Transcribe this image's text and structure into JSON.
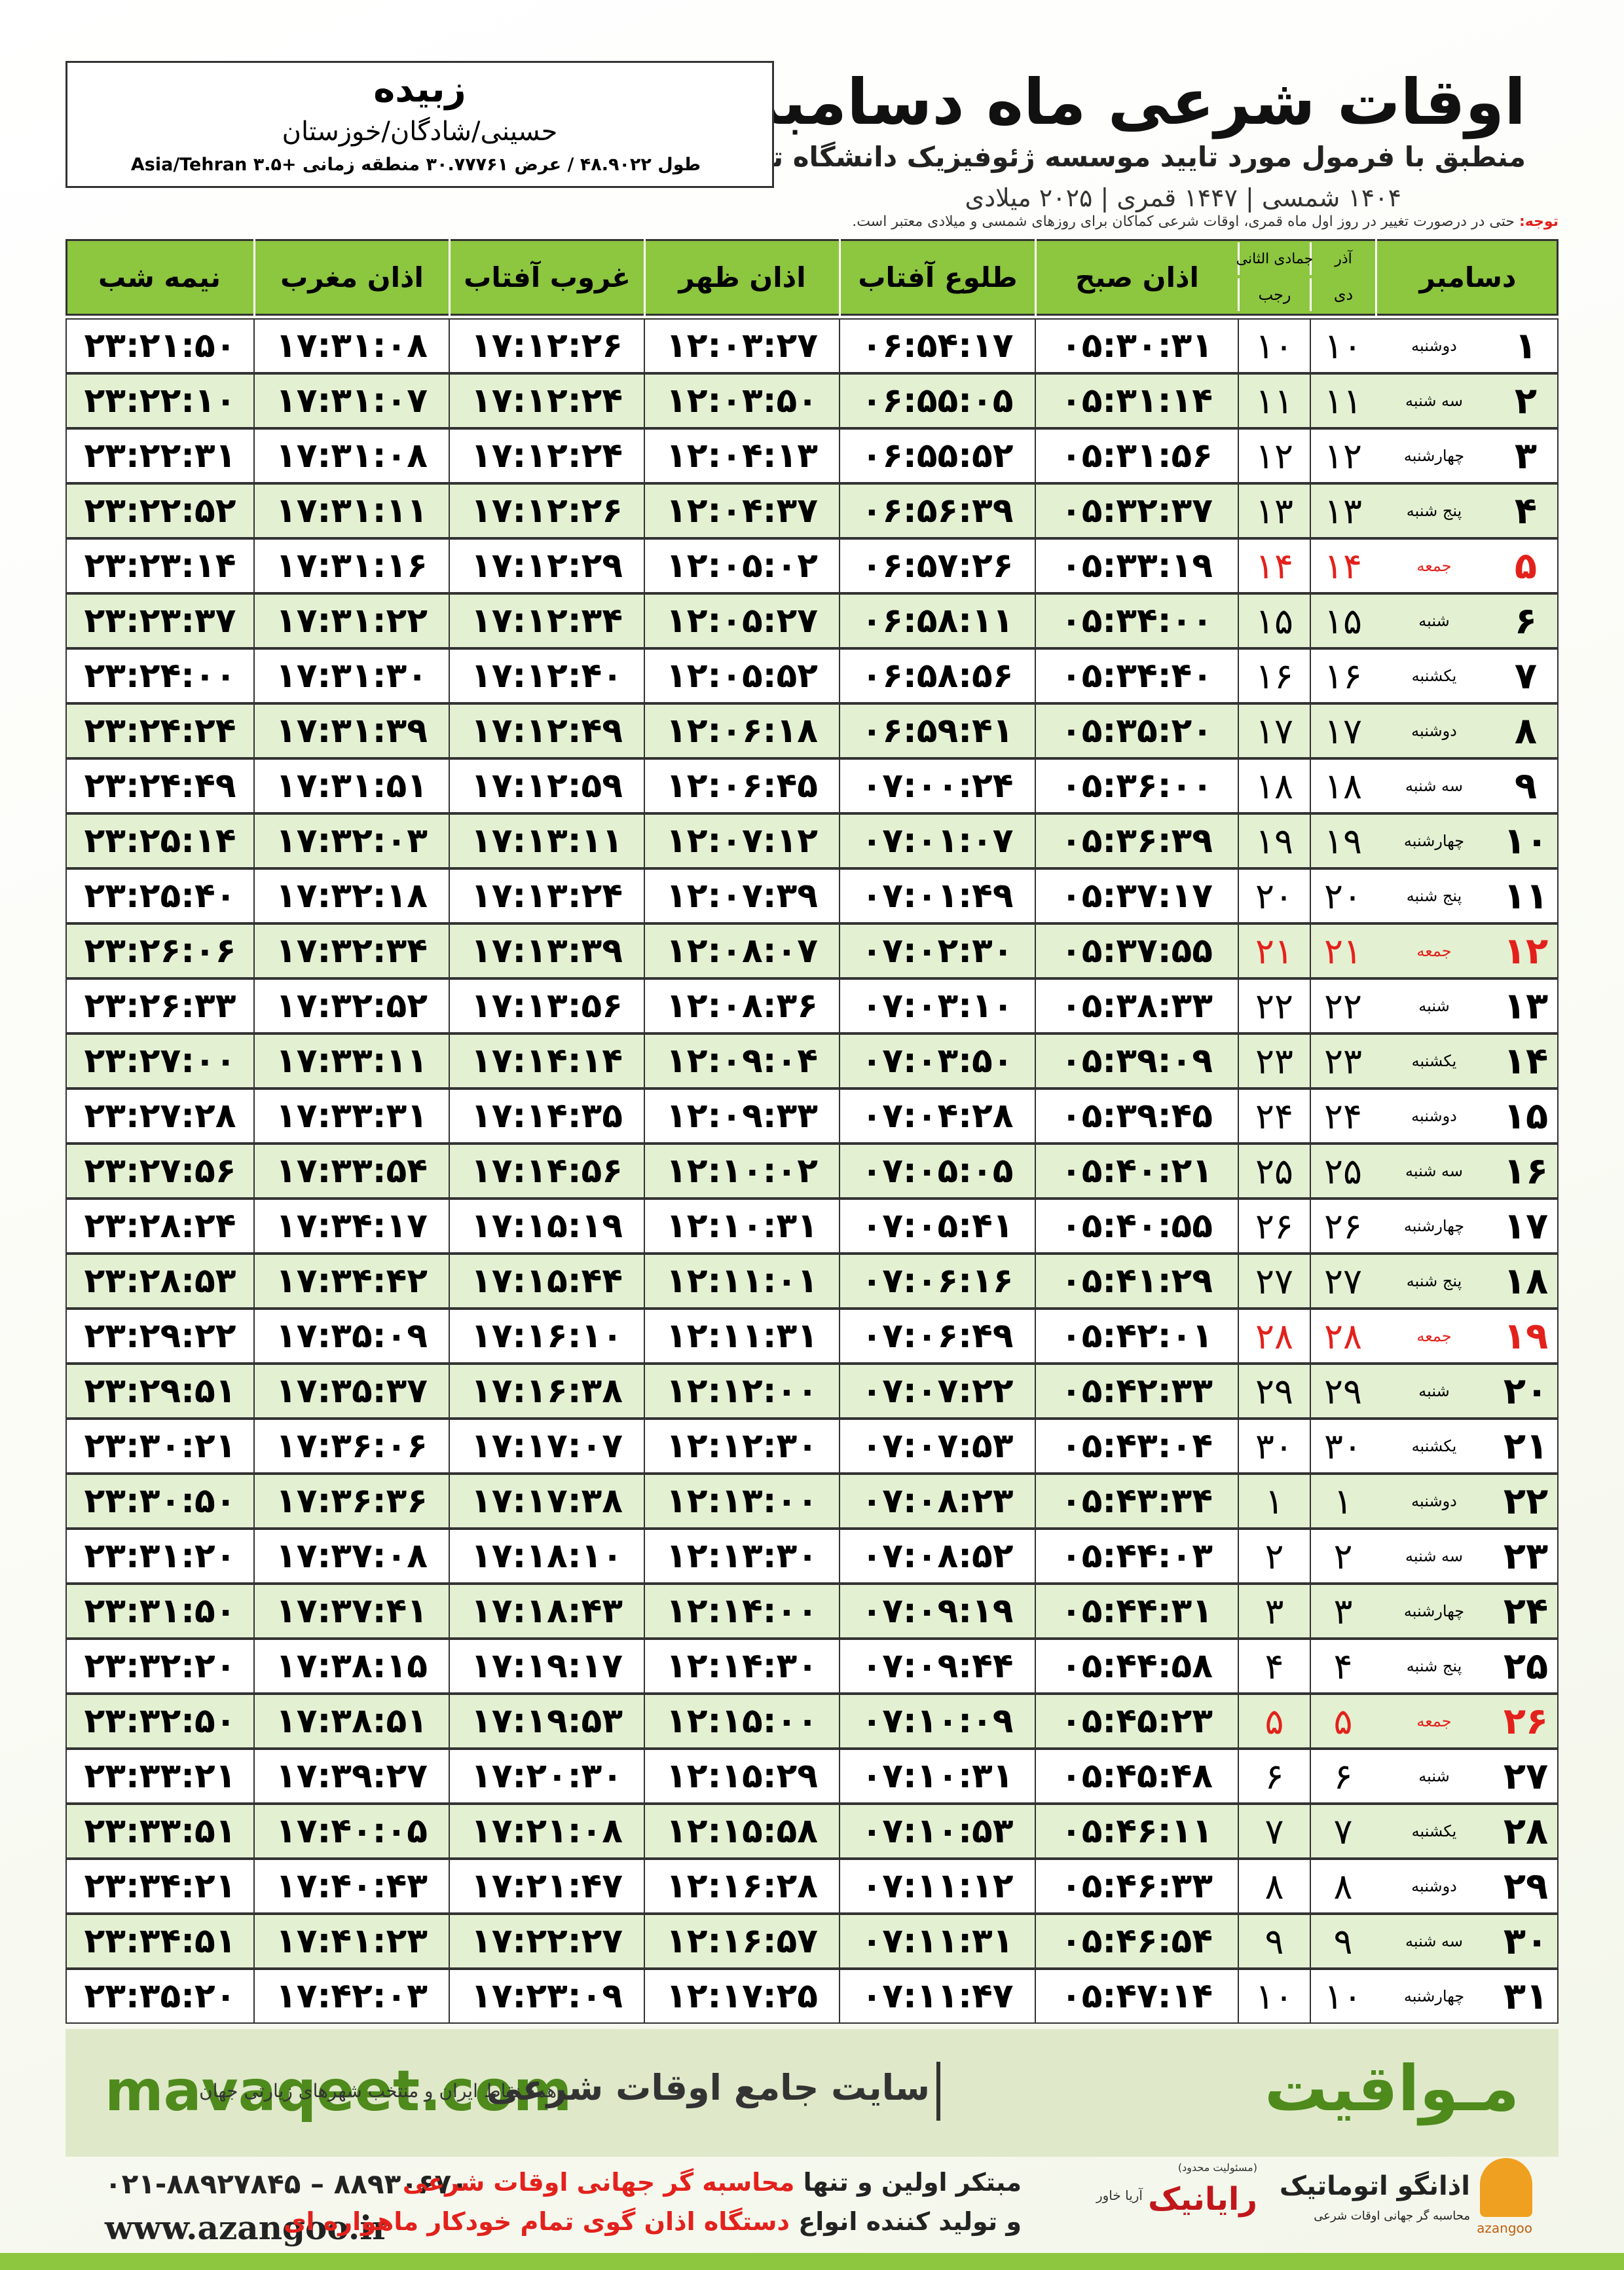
{
  "header": {
    "title": "اوقات شرعی ماه دسامبر",
    "subtitle": "منطبق با فرمول مورد تایید موسسه ژئوفیزیک دانشگاه تهران",
    "dates": "۱۴۰۴ شمسی | ۱۴۴۷ قمری | ۲۰۲۵ میلادی"
  },
  "location": {
    "name": "زبیده",
    "region": "حسینی/شادگان/خوزستان",
    "coords": "طول ۴۸.۹۰۲۲ / عرض ۳۰.۷۷۷۶۱ منطقه زمانی +۳.۵ Asia/Tehran"
  },
  "note": {
    "label": "توجه:",
    "text": "حتی در درصورت تغییر در روز اول ماه قمری، اوقات شرعی کماکان برای روزهای شمسی و میلادی معتبر است."
  },
  "table": {
    "red_rows": [
      4,
      11,
      18,
      25
    ],
    "red_color": "#e3211c",
    "headers": [
      {
        "text": "دسامبر"
      },
      {
        "top": "آذر",
        "bottom": "دی"
      },
      {
        "top": "جمادی الثانی",
        "bottom": "رجب"
      },
      {
        "text": "اذان صبح"
      },
      {
        "text": "طلوع آفتاب"
      },
      {
        "text": "اذان ظهر"
      },
      {
        "text": "غروب آفتاب"
      },
      {
        "text": "اذان مغرب"
      },
      {
        "text": "نیمه شب"
      }
    ],
    "rows": [
      [
        "۱",
        "دوشنبه",
        "۱۰",
        "۱۰",
        "۰۵:۳۰:۳۱",
        "۰۶:۵۴:۱۷",
        "۱۲:۰۳:۲۷",
        "۱۷:۱۲:۲۶",
        "۱۷:۳۱:۰۸",
        "۲۳:۲۱:۵۰"
      ],
      [
        "۲",
        "سه شنبه",
        "۱۱",
        "۱۱",
        "۰۵:۳۱:۱۴",
        "۰۶:۵۵:۰۵",
        "۱۲:۰۳:۵۰",
        "۱۷:۱۲:۲۴",
        "۱۷:۳۱:۰۷",
        "۲۳:۲۲:۱۰"
      ],
      [
        "۳",
        "چهارشنبه",
        "۱۲",
        "۱۲",
        "۰۵:۳۱:۵۶",
        "۰۶:۵۵:۵۲",
        "۱۲:۰۴:۱۳",
        "۱۷:۱۲:۲۴",
        "۱۷:۳۱:۰۸",
        "۲۳:۲۲:۳۱"
      ],
      [
        "۴",
        "پنج شنبه",
        "۱۳",
        "۱۳",
        "۰۵:۳۲:۳۷",
        "۰۶:۵۶:۳۹",
        "۱۲:۰۴:۳۷",
        "۱۷:۱۲:۲۶",
        "۱۷:۳۱:۱۱",
        "۲۳:۲۲:۵۲"
      ],
      [
        "۵",
        "جمعه",
        "۱۴",
        "۱۴",
        "۰۵:۳۳:۱۹",
        "۰۶:۵۷:۲۶",
        "۱۲:۰۵:۰۲",
        "۱۷:۱۲:۲۹",
        "۱۷:۳۱:۱۶",
        "۲۳:۲۳:۱۴"
      ],
      [
        "۶",
        "شنبه",
        "۱۵",
        "۱۵",
        "۰۵:۳۴:۰۰",
        "۰۶:۵۸:۱۱",
        "۱۲:۰۵:۲۷",
        "۱۷:۱۲:۳۴",
        "۱۷:۳۱:۲۲",
        "۲۳:۲۳:۳۷"
      ],
      [
        "۷",
        "یکشنبه",
        "۱۶",
        "۱۶",
        "۰۵:۳۴:۴۰",
        "۰۶:۵۸:۵۶",
        "۱۲:۰۵:۵۲",
        "۱۷:۱۲:۴۰",
        "۱۷:۳۱:۳۰",
        "۲۳:۲۴:۰۰"
      ],
      [
        "۸",
        "دوشنبه",
        "۱۷",
        "۱۷",
        "۰۵:۳۵:۲۰",
        "۰۶:۵۹:۴۱",
        "۱۲:۰۶:۱۸",
        "۱۷:۱۲:۴۹",
        "۱۷:۳۱:۳۹",
        "۲۳:۲۴:۲۴"
      ],
      [
        "۹",
        "سه شنبه",
        "۱۸",
        "۱۸",
        "۰۵:۳۶:۰۰",
        "۰۷:۰۰:۲۴",
        "۱۲:۰۶:۴۵",
        "۱۷:۱۲:۵۹",
        "۱۷:۳۱:۵۱",
        "۲۳:۲۴:۴۹"
      ],
      [
        "۱۰",
        "چهارشنبه",
        "۱۹",
        "۱۹",
        "۰۵:۳۶:۳۹",
        "۰۷:۰۱:۰۷",
        "۱۲:۰۷:۱۲",
        "۱۷:۱۳:۱۱",
        "۱۷:۳۲:۰۳",
        "۲۳:۲۵:۱۴"
      ],
      [
        "۱۱",
        "پنج شنبه",
        "۲۰",
        "۲۰",
        "۰۵:۳۷:۱۷",
        "۰۷:۰۱:۴۹",
        "۱۲:۰۷:۳۹",
        "۱۷:۱۳:۲۴",
        "۱۷:۳۲:۱۸",
        "۲۳:۲۵:۴۰"
      ],
      [
        "۱۲",
        "جمعه",
        "۲۱",
        "۲۱",
        "۰۵:۳۷:۵۵",
        "۰۷:۰۲:۳۰",
        "۱۲:۰۸:۰۷",
        "۱۷:۱۳:۳۹",
        "۱۷:۳۲:۳۴",
        "۲۳:۲۶:۰۶"
      ],
      [
        "۱۳",
        "شنبه",
        "۲۲",
        "۲۲",
        "۰۵:۳۸:۳۳",
        "۰۷:۰۳:۱۰",
        "۱۲:۰۸:۳۶",
        "۱۷:۱۳:۵۶",
        "۱۷:۳۲:۵۲",
        "۲۳:۲۶:۳۳"
      ],
      [
        "۱۴",
        "یکشنبه",
        "۲۳",
        "۲۳",
        "۰۵:۳۹:۰۹",
        "۰۷:۰۳:۵۰",
        "۱۲:۰۹:۰۴",
        "۱۷:۱۴:۱۴",
        "۱۷:۳۳:۱۱",
        "۲۳:۲۷:۰۰"
      ],
      [
        "۱۵",
        "دوشنبه",
        "۲۴",
        "۲۴",
        "۰۵:۳۹:۴۵",
        "۰۷:۰۴:۲۸",
        "۱۲:۰۹:۳۳",
        "۱۷:۱۴:۳۵",
        "۱۷:۳۳:۳۱",
        "۲۳:۲۷:۲۸"
      ],
      [
        "۱۶",
        "سه شنبه",
        "۲۵",
        "۲۵",
        "۰۵:۴۰:۲۱",
        "۰۷:۰۵:۰۵",
        "۱۲:۱۰:۰۲",
        "۱۷:۱۴:۵۶",
        "۱۷:۳۳:۵۴",
        "۲۳:۲۷:۵۶"
      ],
      [
        "۱۷",
        "چهارشنبه",
        "۲۶",
        "۲۶",
        "۰۵:۴۰:۵۵",
        "۰۷:۰۵:۴۱",
        "۱۲:۱۰:۳۱",
        "۱۷:۱۵:۱۹",
        "۱۷:۳۴:۱۷",
        "۲۳:۲۸:۲۴"
      ],
      [
        "۱۸",
        "پنج شنبه",
        "۲۷",
        "۲۷",
        "۰۵:۴۱:۲۹",
        "۰۷:۰۶:۱۶",
        "۱۲:۱۱:۰۱",
        "۱۷:۱۵:۴۴",
        "۱۷:۳۴:۴۲",
        "۲۳:۲۸:۵۳"
      ],
      [
        "۱۹",
        "جمعه",
        "۲۸",
        "۲۸",
        "۰۵:۴۲:۰۱",
        "۰۷:۰۶:۴۹",
        "۱۲:۱۱:۳۱",
        "۱۷:۱۶:۱۰",
        "۱۷:۳۵:۰۹",
        "۲۳:۲۹:۲۲"
      ],
      [
        "۲۰",
        "شنبه",
        "۲۹",
        "۲۹",
        "۰۵:۴۲:۳۳",
        "۰۷:۰۷:۲۲",
        "۱۲:۱۲:۰۰",
        "۱۷:۱۶:۳۸",
        "۱۷:۳۵:۳۷",
        "۲۳:۲۹:۵۱"
      ],
      [
        "۲۱",
        "یکشنبه",
        "۳۰",
        "۳۰",
        "۰۵:۴۳:۰۴",
        "۰۷:۰۷:۵۳",
        "۱۲:۱۲:۳۰",
        "۱۷:۱۷:۰۷",
        "۱۷:۳۶:۰۶",
        "۲۳:۳۰:۲۱"
      ],
      [
        "۲۲",
        "دوشنبه",
        "۱",
        "۱",
        "۰۵:۴۳:۳۴",
        "۰۷:۰۸:۲۳",
        "۱۲:۱۳:۰۰",
        "۱۷:۱۷:۳۸",
        "۱۷:۳۶:۳۶",
        "۲۳:۳۰:۵۰"
      ],
      [
        "۲۳",
        "سه شنبه",
        "۲",
        "۲",
        "۰۵:۴۴:۰۳",
        "۰۷:۰۸:۵۲",
        "۱۲:۱۳:۳۰",
        "۱۷:۱۸:۱۰",
        "۱۷:۳۷:۰۸",
        "۲۳:۳۱:۲۰"
      ],
      [
        "۲۴",
        "چهارشنبه",
        "۳",
        "۳",
        "۰۵:۴۴:۳۱",
        "۰۷:۰۹:۱۹",
        "۱۲:۱۴:۰۰",
        "۱۷:۱۸:۴۳",
        "۱۷:۳۷:۴۱",
        "۲۳:۳۱:۵۰"
      ],
      [
        "۲۵",
        "پنج شنبه",
        "۴",
        "۴",
        "۰۵:۴۴:۵۸",
        "۰۷:۰۹:۴۴",
        "۱۲:۱۴:۳۰",
        "۱۷:۱۹:۱۷",
        "۱۷:۳۸:۱۵",
        "۲۳:۳۲:۲۰"
      ],
      [
        "۲۶",
        "جمعه",
        "۵",
        "۵",
        "۰۵:۴۵:۲۳",
        "۰۷:۱۰:۰۹",
        "۱۲:۱۵:۰۰",
        "۱۷:۱۹:۵۳",
        "۱۷:۳۸:۵۱",
        "۲۳:۳۲:۵۰"
      ],
      [
        "۲۷",
        "شنبه",
        "۶",
        "۶",
        "۰۵:۴۵:۴۸",
        "۰۷:۱۰:۳۱",
        "۱۲:۱۵:۲۹",
        "۱۷:۲۰:۳۰",
        "۱۷:۳۹:۲۷",
        "۲۳:۳۳:۲۱"
      ],
      [
        "۲۸",
        "یکشنبه",
        "۷",
        "۷",
        "۰۵:۴۶:۱۱",
        "۰۷:۱۰:۵۳",
        "۱۲:۱۵:۵۸",
        "۱۷:۲۱:۰۸",
        "۱۷:۴۰:۰۵",
        "۲۳:۳۳:۵۱"
      ],
      [
        "۲۹",
        "دوشنبه",
        "۸",
        "۸",
        "۰۵:۴۶:۳۳",
        "۰۷:۱۱:۱۲",
        "۱۲:۱۶:۲۸",
        "۱۷:۲۱:۴۷",
        "۱۷:۴۰:۴۳",
        "۲۳:۳۴:۲۱"
      ],
      [
        "۳۰",
        "سه شنبه",
        "۹",
        "۹",
        "۰۵:۴۶:۵۴",
        "۰۷:۱۱:۳۱",
        "۱۲:۱۶:۵۷",
        "۱۷:۲۲:۲۷",
        "۱۷:۴۱:۲۳",
        "۲۳:۳۴:۵۱"
      ],
      [
        "۳۱",
        "چهارشنبه",
        "۱۰",
        "۱۰",
        "۰۵:۴۷:۱۴",
        "۰۷:۱۱:۴۷",
        "۱۲:۱۷:۲۵",
        "۱۷:۲۳:۰۹",
        "۱۷:۴۲:۰۳",
        "۲۳:۳۵:۲۰"
      ]
    ]
  },
  "footer": {
    "url": "mavaqeet.com",
    "brand": "مـواقیت",
    "slogan": "سایت جامع اوقات شرعی",
    "coverage": "همه نقاط ایران و منتخب شهرهای زیارتی جهان"
  },
  "contact": {
    "phone": "۰۲۱-۸۸۹۲۷۸۴۵ – ۸۸۹۳۰۶۷۰",
    "website": "www.azangoo.ir",
    "line1": [
      "مبتکر اولین و تنها",
      "محاسبه گر جهانی اوقات شرعی"
    ],
    "line2": [
      "و تولید کننده انواع",
      "دستگاه اذان گوی تمام خودکار ماهواره ای"
    ],
    "logo1": {
      "note": "(مسئولیت محدود)",
      "name": "رایانیک",
      "sub": "آریا خاور"
    },
    "logo2": {
      "name": "اذانگو اتوماتیک",
      "sub": "محاسبه گر جهانی اوقات شرعی",
      "latin": "azangoo"
    }
  }
}
